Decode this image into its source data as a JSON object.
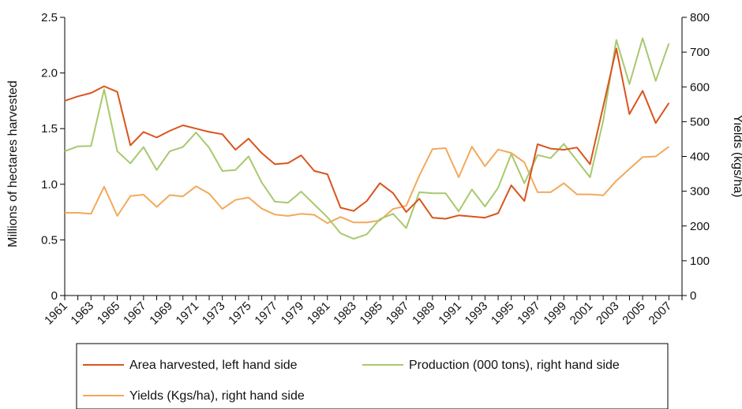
{
  "chart_data": {
    "type": "line",
    "x": [
      1961,
      1962,
      1963,
      1964,
      1965,
      1966,
      1967,
      1968,
      1969,
      1970,
      1971,
      1972,
      1973,
      1974,
      1975,
      1976,
      1977,
      1978,
      1979,
      1980,
      1981,
      1982,
      1983,
      1984,
      1985,
      1986,
      1987,
      1988,
      1989,
      1990,
      1991,
      1992,
      1993,
      1994,
      1995,
      1996,
      1997,
      1998,
      1999,
      2000,
      2001,
      2002,
      2003,
      2004,
      2005,
      2006,
      2007,
      2008
    ],
    "x_tick_labels": [
      "1961",
      "1963",
      "1965",
      "1967",
      "1969",
      "1971",
      "1973",
      "1975",
      "1977",
      "1979",
      "1981",
      "1983",
      "1985",
      "1987",
      "1989",
      "1991",
      "1993",
      "1995",
      "1997",
      "1999",
      "2001",
      "2003",
      "2005",
      "2007"
    ],
    "y_left": {
      "label": "Millions of hectares harvested",
      "range": [
        0,
        2.5
      ],
      "ticks": [
        "0",
        "0.5",
        "1.0",
        "1.5",
        "2.0",
        "2.5"
      ]
    },
    "y_right": {
      "label": "Yields (kgs/ha)",
      "range": [
        0,
        800
      ],
      "ticks": [
        "0",
        "100",
        "200",
        "300",
        "400",
        "500",
        "600",
        "700",
        "800"
      ]
    },
    "grid": false,
    "legend_position": "bottom",
    "series": [
      {
        "name": "Area harvested, left hand side",
        "axis": "left",
        "color": "#d9541e",
        "values": [
          1.75,
          1.79,
          1.82,
          1.88,
          1.83,
          1.35,
          1.47,
          1.42,
          1.48,
          1.53,
          1.5,
          1.47,
          1.45,
          1.31,
          1.41,
          1.28,
          1.18,
          1.19,
          1.26,
          1.12,
          1.09,
          0.79,
          0.76,
          0.85,
          1.01,
          0.92,
          0.75,
          0.87,
          0.7,
          0.69,
          0.72,
          0.71,
          0.7,
          0.74,
          0.99,
          0.85,
          1.36,
          1.32,
          1.31,
          1.33,
          1.18,
          1.7,
          2.22,
          1.63,
          1.84,
          1.55,
          1.73,
          null
        ]
      },
      {
        "name": "Production (000 tons), right hand side",
        "axis": "right",
        "color": "#a7c96d",
        "values": [
          415,
          429,
          430,
          593,
          415,
          380,
          427,
          361,
          415,
          427,
          469,
          425,
          358,
          361,
          400,
          325,
          270,
          267,
          299,
          262,
          225,
          179,
          163,
          176,
          220,
          235,
          194,
          297,
          294,
          294,
          242,
          305,
          256,
          310,
          407,
          323,
          404,
          395,
          436,
          388,
          340,
          503,
          735,
          608,
          740,
          617,
          725,
          null
        ]
      },
      {
        "name": "Yields (Kgs/ha), right hand side",
        "axis": "right",
        "color": "#f2a95c",
        "values": [
          238,
          238,
          235,
          313,
          229,
          286,
          290,
          255,
          289,
          285,
          314,
          293,
          249,
          275,
          282,
          250,
          233,
          229,
          235,
          232,
          208,
          226,
          210,
          210,
          216,
          249,
          258,
          345,
          421,
          424,
          340,
          428,
          372,
          420,
          410,
          383,
          297,
          297,
          323,
          291,
          291,
          288,
          330,
          364,
          398,
          400,
          428,
          null
        ]
      }
    ]
  }
}
